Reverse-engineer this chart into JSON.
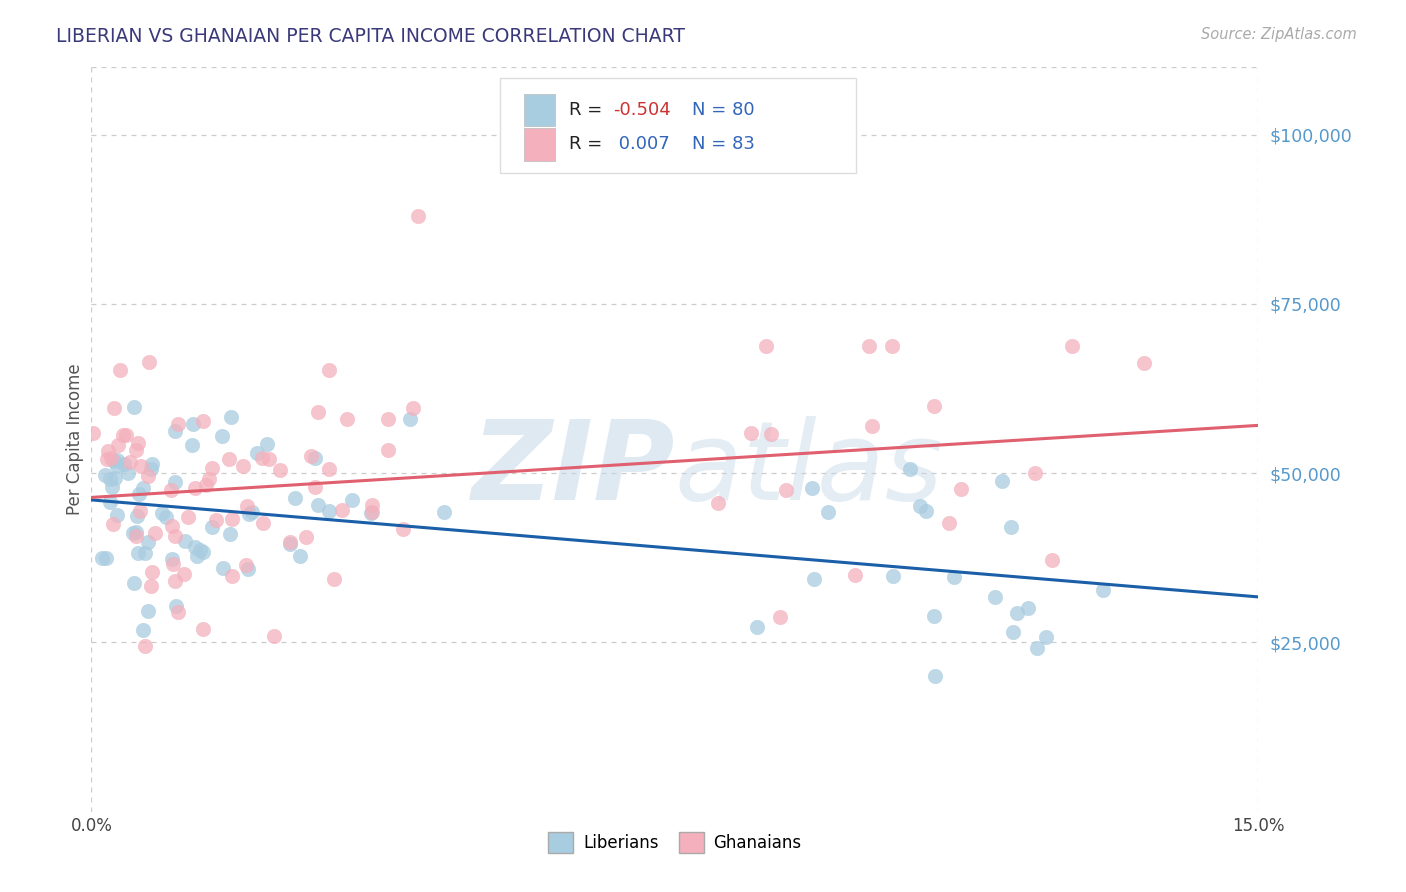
{
  "title": "LIBERIAN VS GHANAIAN PER CAPITA INCOME CORRELATION CHART",
  "source": "Source: ZipAtlas.com",
  "ylabel": "Per Capita Income",
  "xlim": [
    0.0,
    0.15
  ],
  "ylim": [
    0,
    110000
  ],
  "yticks": [
    0,
    25000,
    50000,
    75000,
    100000
  ],
  "ytick_labels": [
    "",
    "$25,000",
    "$50,000",
    "$75,000",
    "$100,000"
  ],
  "liberian_color": "#a8cce0",
  "ghanaian_color": "#f4b0bc",
  "liberian_line_color": "#1a5fa8",
  "ghanaian_line_color": "#e06070",
  "background_color": "#ffffff",
  "grid_color": "#cccccc",
  "title_color": "#3a3a7a",
  "axis_label_color": "#555555",
  "tick_color": "#5599cc",
  "legend_r_color": "#3366bb",
  "legend_neg_color": "#cc3333",
  "watermark_color": "#c5d8e8",
  "seed": 99
}
